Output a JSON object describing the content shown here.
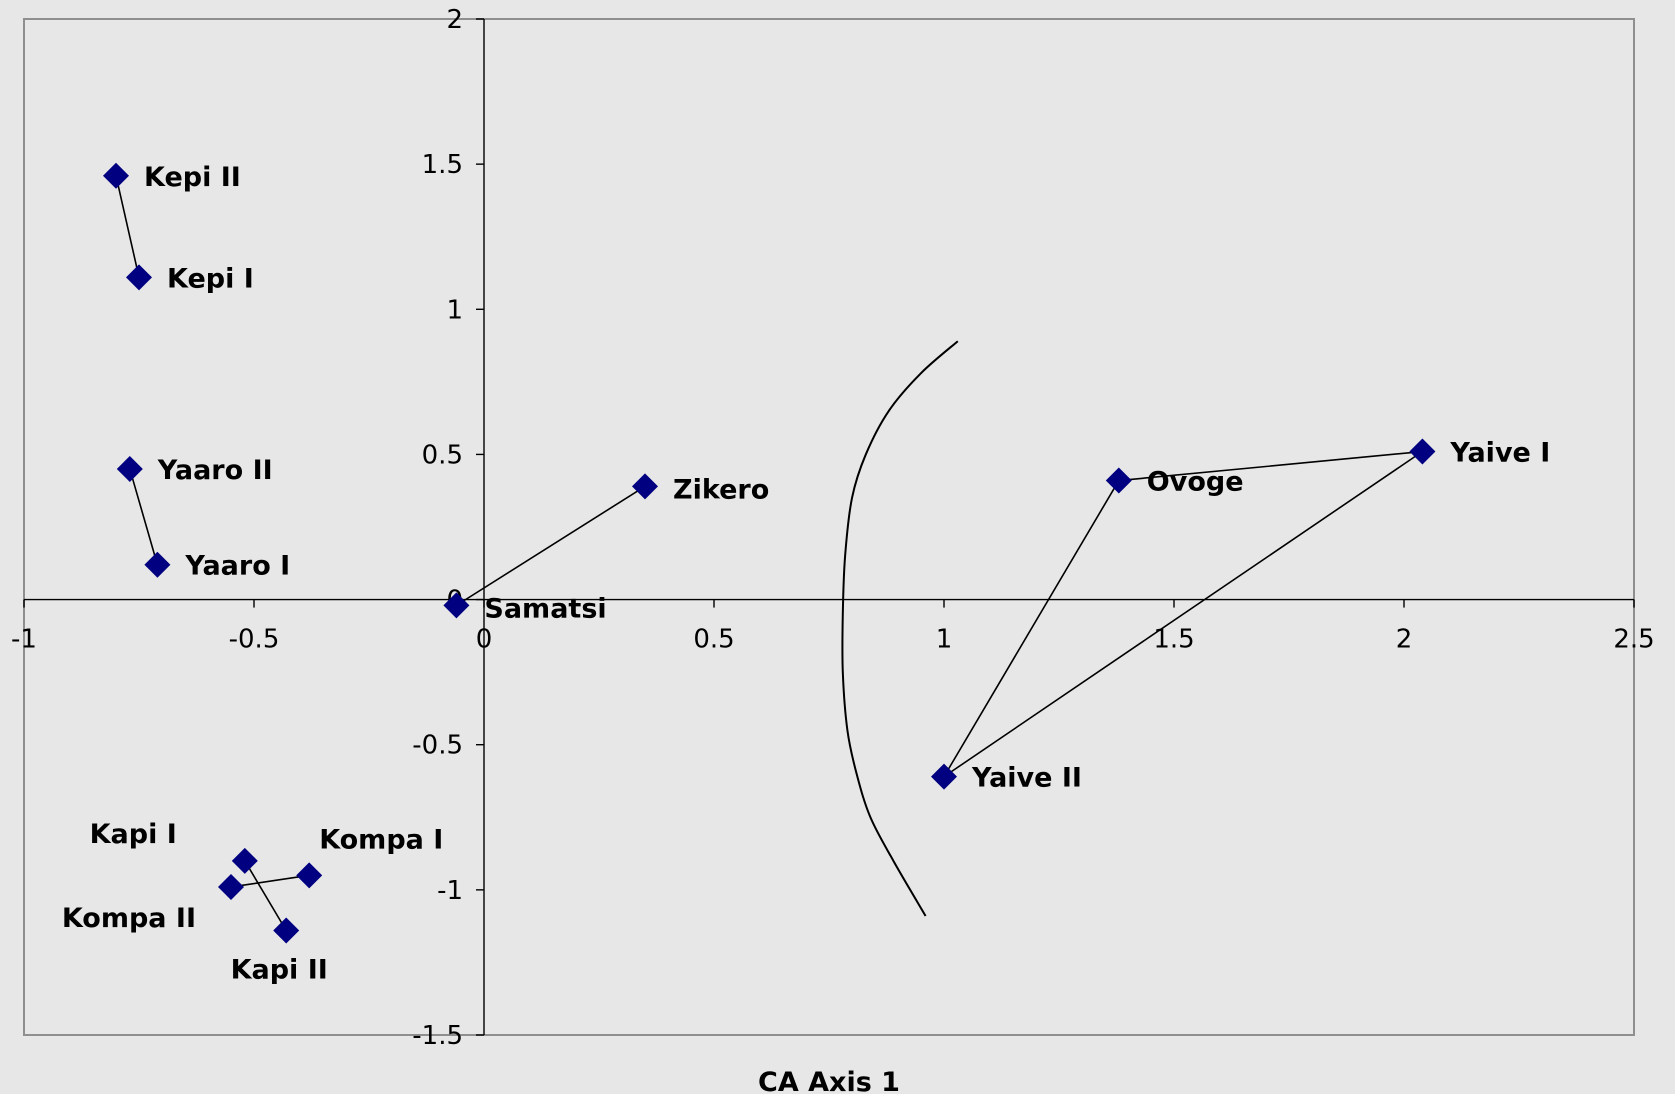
{
  "chart_data": {
    "type": "scatter",
    "xlabel": "CA Axis 1",
    "ylabel": "",
    "xlim": [
      -1,
      2.5
    ],
    "ylim": [
      -1.5,
      2
    ],
    "xticks": [
      "-1",
      "-0.5",
      "0",
      "0.5",
      "1",
      "1.5",
      "2",
      "2.5"
    ],
    "yticks": [
      "2",
      "1.5",
      "1",
      "0.5",
      "0",
      "-0.5",
      "-1",
      "-1.5"
    ],
    "grid": false,
    "legend": "none",
    "marker": "diamond",
    "marker_color": "#000080",
    "points": [
      {
        "label": "Kepi II",
        "x": -0.8,
        "y": 1.46
      },
      {
        "label": "Kepi I",
        "x": -0.75,
        "y": 1.11
      },
      {
        "label": "Yaaro II",
        "x": -0.77,
        "y": 0.45
      },
      {
        "label": "Yaaro I",
        "x": -0.71,
        "y": 0.12
      },
      {
        "label": "Samatsi",
        "x": -0.06,
        "y": -0.02
      },
      {
        "label": "Zikero",
        "x": 0.35,
        "y": 0.39
      },
      {
        "label": "Ovoge",
        "x": 1.38,
        "y": 0.41
      },
      {
        "label": "Yaive I",
        "x": 2.04,
        "y": 0.51
      },
      {
        "label": "Yaive II",
        "x": 1.0,
        "y": -0.61
      },
      {
        "label": "Kapi I",
        "x": -0.52,
        "y": -0.9
      },
      {
        "label": "Kompa I",
        "x": -0.38,
        "y": -0.95
      },
      {
        "label": "Kompa II",
        "x": -0.55,
        "y": -0.99
      },
      {
        "label": "Kapi II",
        "x": -0.43,
        "y": -1.14
      }
    ],
    "connections": [
      [
        "Kepi II",
        "Kepi I"
      ],
      [
        "Yaaro II",
        "Yaaro I"
      ],
      [
        "Samatsi",
        "Zikero"
      ],
      [
        "Ovoge",
        "Yaive I"
      ],
      [
        "Ovoge",
        "Yaive II"
      ],
      [
        "Yaive I",
        "Yaive II"
      ],
      [
        "Kapi I",
        "Kapi II"
      ],
      [
        "Kompa II",
        "Kompa I"
      ]
    ],
    "divider_curve": [
      [
        1.03,
        0.89
      ],
      [
        0.95,
        0.78
      ],
      [
        0.88,
        0.65
      ],
      [
        0.83,
        0.5
      ],
      [
        0.8,
        0.35
      ],
      [
        0.785,
        0.15
      ],
      [
        0.78,
        -0.05
      ],
      [
        0.78,
        -0.25
      ],
      [
        0.79,
        -0.45
      ],
      [
        0.81,
        -0.6
      ],
      [
        0.84,
        -0.75
      ],
      [
        0.89,
        -0.9
      ],
      [
        0.96,
        -1.09
      ]
    ]
  }
}
